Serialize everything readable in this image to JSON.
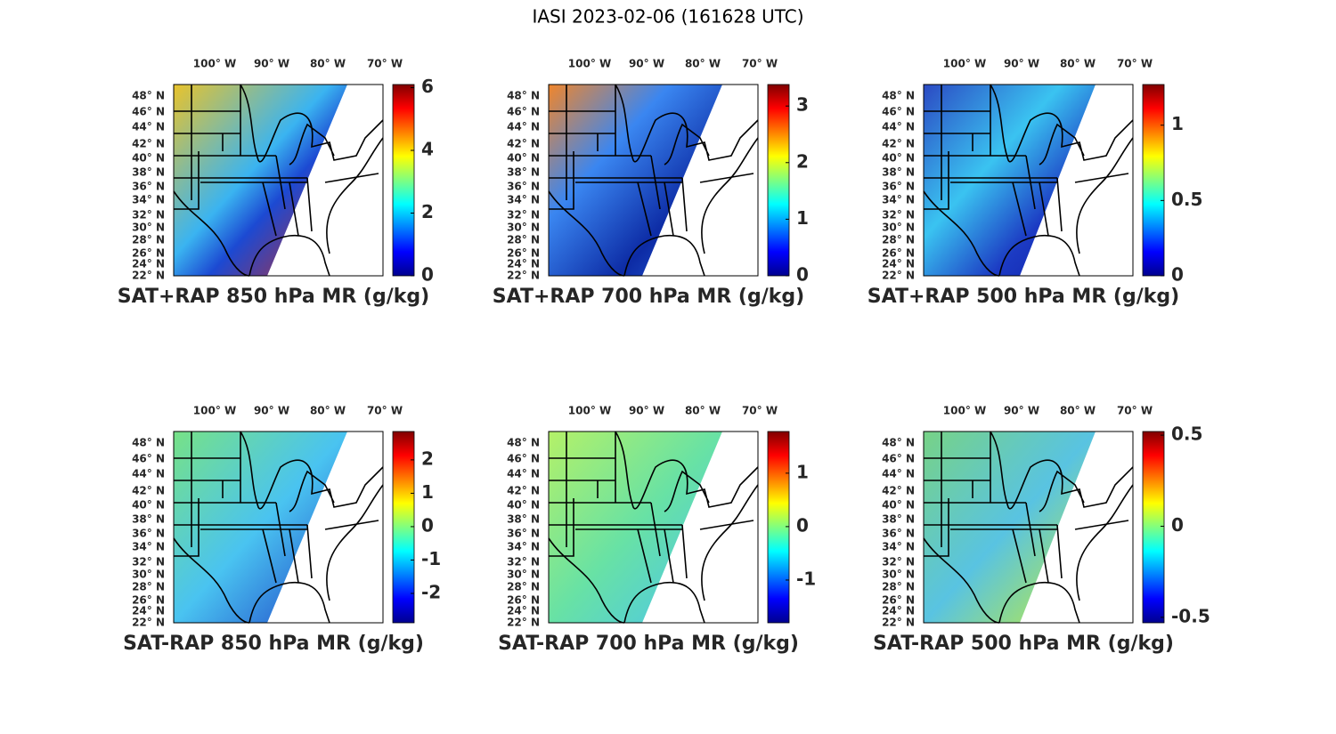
{
  "title": "IASI 2023-02-06 (161628 UTC)",
  "lon_labels": [
    "100° W",
    "90° W",
    "80° W",
    "70° W"
  ],
  "lat_labels": [
    "48° N",
    "46° N",
    "44° N",
    "42° N",
    "40° N",
    "38° N",
    "36° N",
    "34° N",
    "32° N",
    "30° N",
    "28° N",
    "26° N",
    "24° N",
    "22° N"
  ],
  "panels": [
    {
      "caption": "SAT+RAP 850 hPa MR (g/kg)",
      "colorbar": {
        "lim": [
          0,
          6.1
        ],
        "ticks": [
          0,
          2,
          4,
          6
        ]
      }
    },
    {
      "caption": "SAT+RAP 700 hPa MR (g/kg)",
      "colorbar": {
        "lim": [
          0,
          3.38
        ],
        "ticks": [
          0,
          1,
          2,
          3
        ]
      }
    },
    {
      "caption": "SAT+RAP 500 hPa MR (g/kg)",
      "colorbar": {
        "lim": [
          0,
          1.27
        ],
        "ticks": [
          0,
          0.5,
          1
        ]
      }
    },
    {
      "caption": "SAT-RAP 850 hPa MR (g/kg)",
      "colorbar": {
        "lim": [
          -2.88,
          2.85
        ],
        "ticks": [
          -2,
          -1,
          0,
          1,
          2
        ]
      }
    },
    {
      "caption": "SAT-RAP 700 hPa MR (g/kg)",
      "colorbar": {
        "lim": [
          -1.8,
          1.78
        ],
        "ticks": [
          -1,
          0,
          1
        ]
      }
    },
    {
      "caption": "SAT-RAP 500 hPa MR (g/kg)",
      "colorbar": {
        "lim": [
          -0.53,
          0.52
        ],
        "ticks": [
          -0.5,
          0,
          0.5
        ]
      }
    }
  ]
}
